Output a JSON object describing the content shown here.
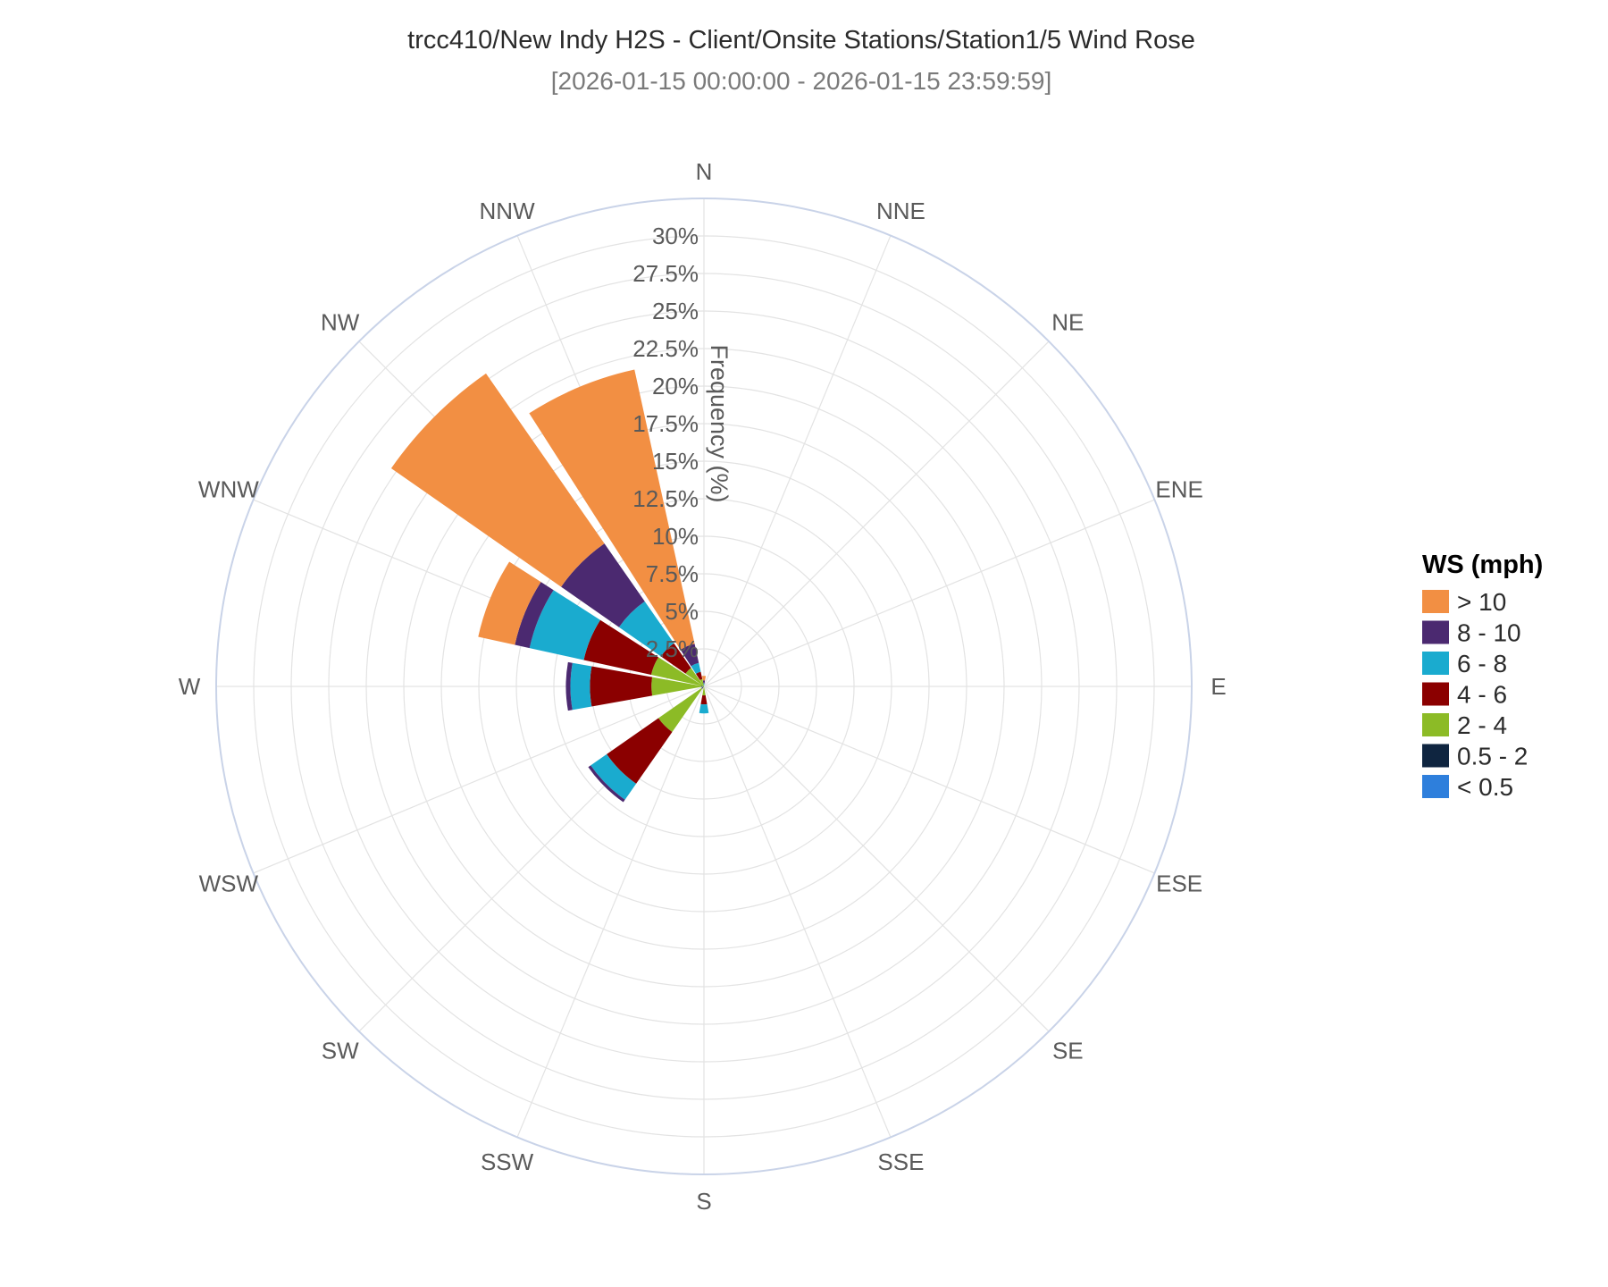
{
  "chart_data": {
    "type": "windrose",
    "title": "trcc410/New Indy H2S - Client/Onsite Stations/Station1/5 Wind Rose",
    "subtitle": "[2026-01-15 00:00:00 - 2026-01-15 23:59:59]",
    "radial_axis_title": "Frequency (%)",
    "radial_range": [
      0,
      32.5
    ],
    "radial_ticks": [
      2.5,
      5,
      7.5,
      10,
      12.5,
      15,
      17.5,
      20,
      22.5,
      25,
      27.5,
      30
    ],
    "radial_tick_labels": [
      "2.5%",
      "5%",
      "7.5%",
      "10%",
      "12.5%",
      "15%",
      "17.5%",
      "20%",
      "22.5%",
      "25%",
      "27.5%",
      "30%"
    ],
    "directions": [
      "N",
      "NNE",
      "NE",
      "ENE",
      "E",
      "ESE",
      "SE",
      "SSE",
      "S",
      "SSW",
      "SW",
      "WSW",
      "W",
      "WNW",
      "NW",
      "NNW"
    ],
    "legend_title": "WS (mph)",
    "legend_position": "right",
    "series": [
      {
        "name": "< 0.5",
        "color": "#2e7fdc",
        "values": [
          0,
          0,
          0,
          0,
          0,
          0,
          0,
          0,
          0,
          0,
          0,
          0,
          0,
          0,
          0,
          0
        ]
      },
      {
        "name": "0.5 - 2",
        "color": "#0f2540",
        "values": [
          0,
          0,
          0,
          0,
          0,
          0,
          0,
          0,
          0,
          0,
          0.2,
          0,
          0.2,
          0,
          0,
          0
        ]
      },
      {
        "name": "2 - 4",
        "color": "#8cbb26",
        "values": [
          0,
          0,
          0,
          0,
          0,
          0,
          0,
          0,
          0.6,
          0,
          3.5,
          0,
          3.3,
          3.6,
          1.5,
          0.5
        ]
      },
      {
        "name": "4 - 6",
        "color": "#8b0000",
        "values": [
          0,
          0,
          0,
          0,
          0,
          0,
          0,
          0,
          0.6,
          0,
          4.2,
          0,
          4.1,
          4.6,
          2.0,
          0.5
        ]
      },
      {
        "name": "6 - 8",
        "color": "#1aabcf",
        "values": [
          0.2,
          0,
          0,
          0,
          0,
          0,
          0,
          0,
          0.6,
          0,
          1.3,
          0,
          1.3,
          3.7,
          3.4,
          0.6
        ]
      },
      {
        "name": "8 - 10",
        "color": "#4b2970",
        "values": [
          0.2,
          0,
          0,
          0,
          0,
          0,
          0,
          0,
          0,
          0,
          0.2,
          0,
          0.3,
          1.0,
          4.7,
          1.3
        ]
      },
      {
        "name": "> 10",
        "color": "#f28f43",
        "values": [
          0.3,
          0,
          0,
          0,
          0,
          0,
          0,
          0,
          0,
          0,
          0,
          0,
          0,
          2.5,
          13.8,
          18.7
        ]
      }
    ]
  }
}
